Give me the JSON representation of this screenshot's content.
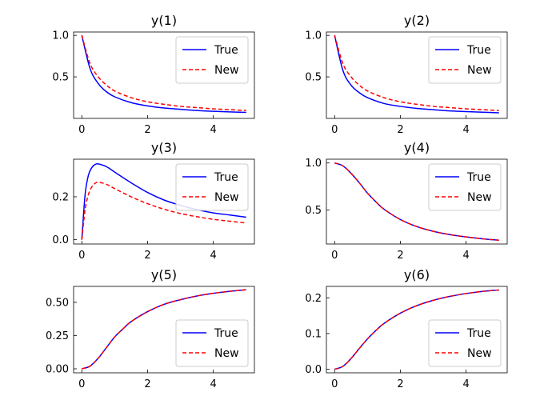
{
  "chart_data": [
    {
      "type": "line",
      "title": "y(1)",
      "xlabel": "",
      "ylabel": "",
      "xlim": [
        -0.25,
        5.25
      ],
      "ylim": [
        0.0,
        1.04
      ],
      "xticks": [
        0,
        2,
        4
      ],
      "xtick_labels": [
        "0",
        "2",
        "4"
      ],
      "yticks": [
        0.5,
        1.0
      ],
      "ytick_labels": [
        "0.5",
        "1.0"
      ],
      "legend_position": "upper-right",
      "x": [
        0,
        0.25,
        0.5,
        0.75,
        1,
        1.5,
        2,
        2.5,
        3,
        3.5,
        4,
        4.5,
        5
      ],
      "series": [
        {
          "name": "True",
          "color": "#0000ff",
          "style": "solid",
          "values": [
            1.0,
            0.6,
            0.42,
            0.32,
            0.26,
            0.19,
            0.15,
            0.125,
            0.11,
            0.095,
            0.085,
            0.078,
            0.072
          ]
        },
        {
          "name": "New",
          "color": "#ff0000",
          "style": "dashed",
          "values": [
            1.0,
            0.66,
            0.5,
            0.4,
            0.33,
            0.25,
            0.2,
            0.17,
            0.145,
            0.13,
            0.115,
            0.105,
            0.095
          ]
        }
      ]
    },
    {
      "type": "line",
      "title": "y(2)",
      "xlabel": "",
      "ylabel": "",
      "xlim": [
        -0.25,
        5.25
      ],
      "ylim": [
        0.0,
        1.04
      ],
      "xticks": [
        0,
        2,
        4
      ],
      "xtick_labels": [
        "0",
        "2",
        "4"
      ],
      "yticks": [
        0.5,
        1.0
      ],
      "ytick_labels": [
        "0.5",
        "1.0"
      ],
      "legend_position": "upper-right",
      "x": [
        0,
        0.25,
        0.5,
        0.75,
        1,
        1.5,
        2,
        2.5,
        3,
        3.5,
        4,
        4.5,
        5
      ],
      "series": [
        {
          "name": "True",
          "color": "#0000ff",
          "style": "solid",
          "values": [
            1.0,
            0.58,
            0.4,
            0.31,
            0.25,
            0.18,
            0.145,
            0.12,
            0.105,
            0.09,
            0.082,
            0.075,
            0.068
          ]
        },
        {
          "name": "New",
          "color": "#ff0000",
          "style": "dashed",
          "values": [
            1.0,
            0.66,
            0.5,
            0.4,
            0.33,
            0.25,
            0.2,
            0.17,
            0.145,
            0.13,
            0.115,
            0.105,
            0.095
          ]
        }
      ]
    },
    {
      "type": "line",
      "title": "y(3)",
      "xlabel": "",
      "ylabel": "",
      "xlim": [
        -0.25,
        5.25
      ],
      "ylim": [
        -0.02,
        0.375
      ],
      "xticks": [
        0,
        2,
        4
      ],
      "xtick_labels": [
        "0",
        "2",
        "4"
      ],
      "yticks": [
        0.0,
        0.2
      ],
      "ytick_labels": [
        "0.0",
        "0.2"
      ],
      "legend_position": "upper-right",
      "x": [
        0,
        0.1,
        0.2,
        0.3,
        0.4,
        0.5,
        0.75,
        1,
        1.5,
        2,
        2.5,
        3,
        3.5,
        4,
        4.5,
        5
      ],
      "series": [
        {
          "name": "True",
          "color": "#0000ff",
          "style": "solid",
          "values": [
            0.0,
            0.21,
            0.3,
            0.335,
            0.35,
            0.353,
            0.34,
            0.315,
            0.265,
            0.22,
            0.185,
            0.16,
            0.14,
            0.125,
            0.115,
            0.105
          ]
        },
        {
          "name": "New",
          "color": "#ff0000",
          "style": "dashed",
          "values": [
            0.0,
            0.14,
            0.21,
            0.245,
            0.262,
            0.268,
            0.258,
            0.238,
            0.2,
            0.168,
            0.142,
            0.122,
            0.107,
            0.095,
            0.086,
            0.078
          ]
        }
      ]
    },
    {
      "type": "line",
      "title": "y(4)",
      "xlabel": "",
      "ylabel": "",
      "xlim": [
        -0.25,
        5.25
      ],
      "ylim": [
        0.14,
        1.04
      ],
      "xticks": [
        0,
        2,
        4
      ],
      "xtick_labels": [
        "0",
        "2",
        "4"
      ],
      "yticks": [
        0.5,
        1.0
      ],
      "ytick_labels": [
        "0.5",
        "1.0"
      ],
      "legend_position": "upper-right",
      "x": [
        0,
        0.25,
        0.5,
        0.75,
        1,
        1.25,
        1.5,
        2,
        2.5,
        3,
        3.5,
        4,
        4.5,
        5
      ],
      "series": [
        {
          "name": "True",
          "color": "#0000ff",
          "style": "solid",
          "values": [
            1.0,
            0.97,
            0.89,
            0.79,
            0.68,
            0.59,
            0.51,
            0.4,
            0.325,
            0.275,
            0.24,
            0.215,
            0.195,
            0.18
          ]
        },
        {
          "name": "New",
          "color": "#ff0000",
          "style": "dashed",
          "values": [
            1.0,
            0.97,
            0.89,
            0.79,
            0.68,
            0.59,
            0.51,
            0.4,
            0.325,
            0.275,
            0.24,
            0.215,
            0.195,
            0.18
          ]
        }
      ]
    },
    {
      "type": "line",
      "title": "y(5)",
      "xlabel": "",
      "ylabel": "",
      "xlim": [
        -0.25,
        5.25
      ],
      "ylim": [
        -0.03,
        0.62
      ],
      "xticks": [
        0,
        2,
        4
      ],
      "xtick_labels": [
        "0",
        "2",
        "4"
      ],
      "yticks": [
        0.0,
        0.25,
        0.5
      ],
      "ytick_labels": [
        "0.00",
        "0.25",
        "0.50"
      ],
      "legend_position": "lower-right",
      "x": [
        0,
        0.25,
        0.5,
        0.75,
        1,
        1.25,
        1.5,
        2,
        2.5,
        3,
        3.5,
        4,
        4.5,
        5
      ],
      "series": [
        {
          "name": "True",
          "color": "#0000ff",
          "style": "solid",
          "values": [
            0.0,
            0.02,
            0.08,
            0.16,
            0.24,
            0.3,
            0.355,
            0.43,
            0.485,
            0.52,
            0.548,
            0.568,
            0.583,
            0.595
          ]
        },
        {
          "name": "New",
          "color": "#ff0000",
          "style": "dashed",
          "values": [
            0.0,
            0.02,
            0.08,
            0.16,
            0.24,
            0.3,
            0.355,
            0.43,
            0.485,
            0.52,
            0.548,
            0.568,
            0.583,
            0.595
          ]
        }
      ]
    },
    {
      "type": "line",
      "title": "y(6)",
      "xlabel": "",
      "ylabel": "",
      "xlim": [
        -0.25,
        5.25
      ],
      "ylim": [
        -0.01,
        0.232
      ],
      "xticks": [
        0,
        2,
        4
      ],
      "xtick_labels": [
        "0",
        "2",
        "4"
      ],
      "yticks": [
        0.0,
        0.1,
        0.2
      ],
      "ytick_labels": [
        "0.0",
        "0.1",
        "0.2"
      ],
      "legend_position": "lower-right",
      "x": [
        0,
        0.25,
        0.5,
        0.75,
        1,
        1.25,
        1.5,
        2,
        2.5,
        3,
        3.5,
        4,
        4.5,
        5
      ],
      "series": [
        {
          "name": "True",
          "color": "#0000ff",
          "style": "solid",
          "values": [
            0.0,
            0.008,
            0.03,
            0.058,
            0.085,
            0.108,
            0.128,
            0.157,
            0.178,
            0.193,
            0.204,
            0.212,
            0.218,
            0.222
          ]
        },
        {
          "name": "New",
          "color": "#ff0000",
          "style": "dashed",
          "values": [
            0.0,
            0.008,
            0.03,
            0.058,
            0.085,
            0.108,
            0.128,
            0.157,
            0.178,
            0.193,
            0.204,
            0.212,
            0.218,
            0.222
          ]
        }
      ]
    }
  ]
}
